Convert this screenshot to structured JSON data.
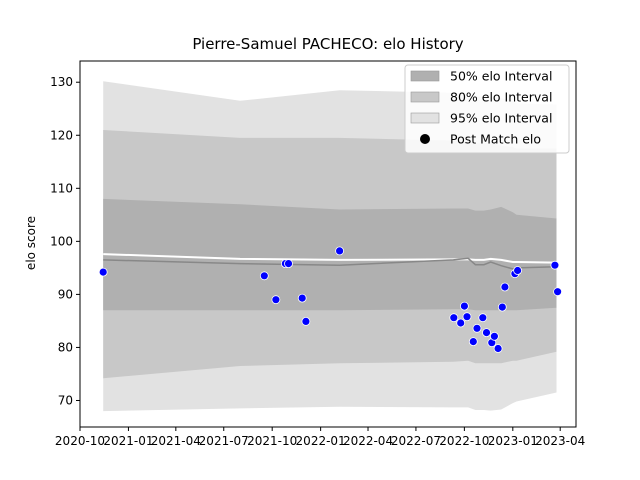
{
  "chart_data": {
    "type": "line",
    "title": "Pierre-Samuel PACHECO: elo History",
    "xlabel": "",
    "ylabel": "elo score",
    "xlim": [
      "2020-10-01",
      "2023-05-01"
    ],
    "ylim": [
      65,
      134
    ],
    "x_tick_labels": [
      "2020-10",
      "2021-01",
      "2021-04",
      "2021-07",
      "2021-10",
      "2022-01",
      "2022-04",
      "2022-07",
      "2022-10",
      "2023-01",
      "2023-04"
    ],
    "x_tick_dates": [
      "2020-10-01",
      "2021-01-01",
      "2021-04-01",
      "2021-07-01",
      "2021-10-01",
      "2022-01-01",
      "2022-04-01",
      "2022-07-01",
      "2022-10-01",
      "2023-01-01",
      "2023-04-01"
    ],
    "y_ticks": [
      70,
      80,
      90,
      100,
      110,
      120,
      130
    ],
    "legend": {
      "position": "top-right",
      "entries": [
        "50% elo Interval",
        "80% elo Interval",
        "95% elo Interval",
        "Post Match elo"
      ]
    },
    "colors": {
      "band50": "#b0b0b0",
      "band80": "#c8c8c8",
      "band95": "#e2e2e2",
      "mean_line": "#888888",
      "expected_line": "#ffffff",
      "points": "#0000ff"
    },
    "intervals": {
      "dates": [
        "2020-11-14",
        "2021-08-01",
        "2022-02-06",
        "2022-09-10",
        "2022-10-08",
        "2022-10-22",
        "2022-11-07",
        "2022-11-20",
        "2022-12-10",
        "2023-01-01",
        "2023-01-08",
        "2023-03-25"
      ],
      "mean": [
        96.5,
        95.8,
        95.5,
        96.5,
        96.8,
        95.6,
        95.6,
        96.1,
        95.4,
        94.8,
        95.0,
        95.2
      ],
      "expected": [
        97.6,
        96.7,
        96.5,
        96.6,
        96.6,
        96.5,
        96.5,
        96.7,
        96.5,
        96.1,
        96.1,
        96.0
      ],
      "p50": [
        [
          87.0,
          108.0
        ],
        [
          87.0,
          107.0
        ],
        [
          87.0,
          106.0
        ],
        [
          87.2,
          106.2
        ],
        [
          87.2,
          106.2
        ],
        [
          87.0,
          105.8
        ],
        [
          87.0,
          105.8
        ],
        [
          87.0,
          106.0
        ],
        [
          87.0,
          106.5
        ],
        [
          87.0,
          105.5
        ],
        [
          87.0,
          105.0
        ],
        [
          87.5,
          104.3
        ]
      ],
      "p80": [
        [
          74.2,
          121.0
        ],
        [
          76.5,
          119.5
        ],
        [
          77.0,
          119.5
        ],
        [
          77.3,
          119.0
        ],
        [
          77.5,
          118.7
        ],
        [
          77.0,
          118.5
        ],
        [
          77.0,
          118.5
        ],
        [
          77.0,
          118.7
        ],
        [
          77.0,
          118.0
        ],
        [
          77.5,
          117.8
        ],
        [
          77.5,
          117.5
        ],
        [
          79.2,
          117.5
        ]
      ],
      "p95": [
        [
          68.0,
          130.2
        ],
        [
          68.5,
          126.5
        ],
        [
          68.8,
          128.5
        ],
        [
          68.7,
          128.0
        ],
        [
          68.7,
          127.5
        ],
        [
          68.2,
          127.3
        ],
        [
          68.2,
          127.3
        ],
        [
          68.1,
          127.2
        ],
        [
          68.3,
          127.0
        ],
        [
          69.5,
          126.5
        ],
        [
          69.8,
          126.0
        ],
        [
          71.5,
          125.8
        ]
      ]
    },
    "points": [
      {
        "date": "2020-11-14",
        "elo": 94.2
      },
      {
        "date": "2021-09-16",
        "elo": 93.5
      },
      {
        "date": "2021-10-08",
        "elo": 89.0
      },
      {
        "date": "2021-10-26",
        "elo": 95.8
      },
      {
        "date": "2021-11-01",
        "elo": 95.8
      },
      {
        "date": "2021-11-27",
        "elo": 89.3
      },
      {
        "date": "2021-12-04",
        "elo": 84.9
      },
      {
        "date": "2022-02-06",
        "elo": 98.2
      },
      {
        "date": "2022-09-11",
        "elo": 85.6
      },
      {
        "date": "2022-09-24",
        "elo": 84.6
      },
      {
        "date": "2022-10-01",
        "elo": 87.8
      },
      {
        "date": "2022-10-06",
        "elo": 85.8
      },
      {
        "date": "2022-10-18",
        "elo": 81.1
      },
      {
        "date": "2022-10-25",
        "elo": 83.6
      },
      {
        "date": "2022-11-05",
        "elo": 85.6
      },
      {
        "date": "2022-11-12",
        "elo": 82.8
      },
      {
        "date": "2022-11-22",
        "elo": 80.9
      },
      {
        "date": "2022-11-27",
        "elo": 82.1
      },
      {
        "date": "2022-12-04",
        "elo": 79.8
      },
      {
        "date": "2022-12-12",
        "elo": 87.6
      },
      {
        "date": "2022-12-17",
        "elo": 91.4
      },
      {
        "date": "2023-01-05",
        "elo": 93.9
      },
      {
        "date": "2023-01-10",
        "elo": 94.5
      },
      {
        "date": "2023-03-22",
        "elo": 95.5
      },
      {
        "date": "2023-03-27",
        "elo": 90.5
      }
    ]
  }
}
